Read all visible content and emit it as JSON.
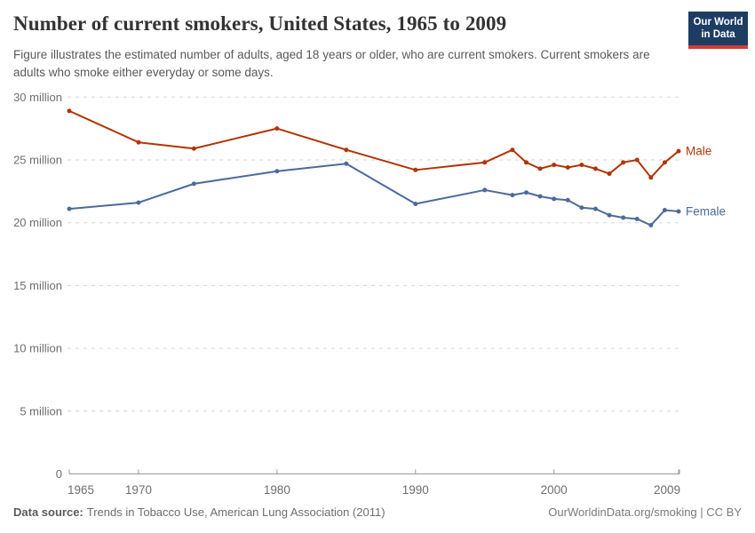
{
  "header": {
    "title": "Number of current smokers, United States, 1965 to 2009",
    "subtitle": "Figure illustrates the estimated number of adults, aged 18 years or older, who are current smokers. Current smokers are adults who smoke either everyday or some days.",
    "logo": {
      "line1": "Our World",
      "line2": "in Data",
      "bg_color": "#1d3d63",
      "stripe_color": "#cf3e36"
    }
  },
  "chart_data": {
    "type": "line",
    "title": "Number of current smokers, United States, 1965 to 2009",
    "xlabel": "",
    "ylabel": "",
    "x": [
      1965,
      1970,
      1974,
      1980,
      1985,
      1990,
      1995,
      1997,
      1998,
      1999,
      2000,
      2001,
      2002,
      2003,
      2004,
      2005,
      2006,
      2007,
      2008,
      2009
    ],
    "series": [
      {
        "name": "Male",
        "color": "#b13507",
        "values": [
          28.9,
          26.4,
          25.9,
          27.5,
          25.8,
          24.2,
          24.8,
          25.8,
          24.8,
          24.3,
          24.6,
          24.4,
          24.6,
          24.3,
          23.9,
          24.8,
          25.0,
          23.6,
          24.8,
          25.7
        ]
      },
      {
        "name": "Female",
        "color": "#4c6a9c",
        "values": [
          21.1,
          21.6,
          23.1,
          24.1,
          24.7,
          21.5,
          22.6,
          22.2,
          22.4,
          22.1,
          21.9,
          21.8,
          21.2,
          21.1,
          20.6,
          20.4,
          20.3,
          19.8,
          21.0,
          20.9
        ]
      }
    ],
    "xlim": [
      1965,
      2009
    ],
    "ylim": [
      0,
      30
    ],
    "xticks": [
      1965,
      1970,
      1980,
      1990,
      2000,
      2009
    ],
    "yticks": [
      0,
      5,
      10,
      15,
      20,
      25,
      30
    ],
    "ytick_labels": [
      "0",
      "5 million",
      "10 million",
      "15 million",
      "20 million",
      "25 million",
      "30 million"
    ],
    "grid": "horizontal-dashed",
    "legend_position": "line-end-labels"
  },
  "footer": {
    "source_label": "Data source:",
    "source_text": "Trends in Tobacco Use, American Lung Association (2011)",
    "license_text": "OurWorldinData.org/smoking | CC BY"
  },
  "colors": {
    "male": "#b13507",
    "female": "#4c6a9c",
    "grid": "#d6d6d6",
    "axis": "#999999",
    "tick_label": "#6e6e6e"
  }
}
